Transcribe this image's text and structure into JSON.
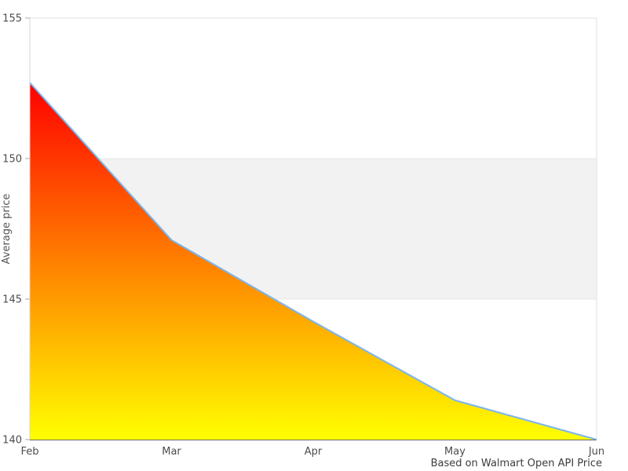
{
  "chart_data": {
    "type": "area",
    "categories": [
      "Feb",
      "Mar",
      "Apr",
      "May",
      "Jun"
    ],
    "values": [
      152.7,
      147.1,
      144.2,
      141.4,
      140.0
    ],
    "title": "",
    "xlabel": "",
    "ylabel": "Average price",
    "ylim": [
      140,
      155
    ],
    "yticks": [
      140,
      145,
      150,
      155
    ],
    "grid": "horizontal",
    "legend": "none",
    "plot_band": {
      "from": 145,
      "to": 150,
      "color": "#f2f2f2"
    },
    "colors": {
      "line": "#7cb5ec",
      "area_gradient_top": "#ff0000",
      "area_gradient_bottom": "#ffff00",
      "grid_line": "#e6e6e6",
      "plot_border": "#e0e0e0",
      "y_axis_line": "#d4d4d4",
      "x_axis_line": "#6b6b6b",
      "tick_mark": "#aaaaaa",
      "tick_label": "#4d4d4d",
      "axis_title": "#555555"
    }
  },
  "caption": {
    "text": "Based on Walmart Open API Price"
  }
}
